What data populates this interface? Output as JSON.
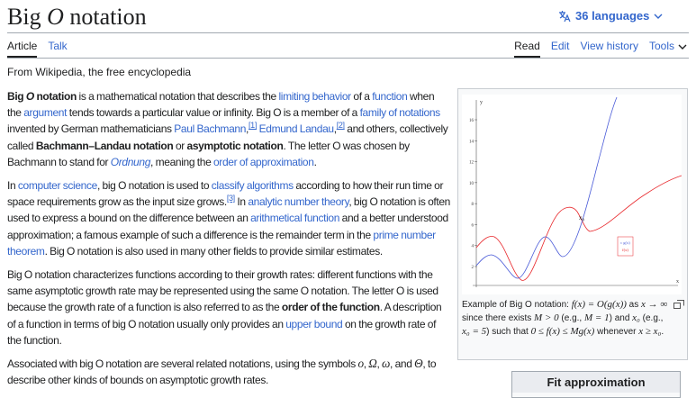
{
  "header": {
    "title": [
      {
        "text": "Big "
      },
      {
        "italic": "O"
      },
      {
        "text": " notation"
      }
    ],
    "languages": "36 languages"
  },
  "tabs_left": [
    "Article",
    "Talk"
  ],
  "tabs_right": [
    "Read",
    "Edit",
    "View history",
    "Tools"
  ],
  "tagline": "From Wikipedia, the free encyclopedia",
  "paragraphs": [
    [
      {
        "bold": "Big "
      },
      {
        "bold_italic": "O"
      },
      {
        "bold": " notation"
      },
      {
        "text": " is a mathematical notation that describes the "
      },
      {
        "link": "limiting behavior"
      },
      {
        "text": " of a "
      },
      {
        "link": "function"
      },
      {
        "text": " when the "
      },
      {
        "link": "argument"
      },
      {
        "text": " tends towards a particular value or infinity. Big O is a member of a "
      },
      {
        "link": "family of notations"
      },
      {
        "text": " invented by German mathematicians "
      },
      {
        "link": "Paul Bachmann"
      },
      {
        "text": ","
      },
      {
        "ref": "[1]"
      },
      {
        "text": " "
      },
      {
        "link": "Edmund Landau"
      },
      {
        "text": ","
      },
      {
        "ref": "[2]"
      },
      {
        "text": " and others, collectively called "
      },
      {
        "bold": "Bachmann–Landau notation"
      },
      {
        "text": " or "
      },
      {
        "bold": "asymptotic notation"
      },
      {
        "text": ". The letter O was chosen by Bachmann to stand for "
      },
      {
        "link_italic": "Ordnung"
      },
      {
        "text": ", meaning the "
      },
      {
        "link": "order of approximation"
      },
      {
        "text": "."
      }
    ],
    [
      {
        "text": "In "
      },
      {
        "link": "computer science"
      },
      {
        "text": ", big O notation is used to "
      },
      {
        "link": "classify algorithms"
      },
      {
        "text": " according to how their run time or space requirements grow as the input size grows."
      },
      {
        "ref": "[3]"
      },
      {
        "text": " In "
      },
      {
        "link": "analytic number theory"
      },
      {
        "text": ", big O notation is often used to express a bound on the difference between an "
      },
      {
        "link": "arithmetical function"
      },
      {
        "text": " and a better understood approximation; a famous example of such a difference is the remainder term in the "
      },
      {
        "link": "prime number theorem"
      },
      {
        "text": ". Big O notation is also used in many other fields to provide similar estimates."
      }
    ],
    [
      {
        "text": "Big O notation characterizes functions according to their growth rates: different functions with the same asymptotic growth rate may be represented using the same O notation. The letter O is used because the growth rate of a function is also referred to as the "
      },
      {
        "bold": "order of the function"
      },
      {
        "text": ". A description of a function in terms of big O notation usually only provides an "
      },
      {
        "link": "upper bound"
      },
      {
        "text": " on the growth rate of the function."
      }
    ],
    [
      {
        "text": "Associated with big O notation are several related notations, using the symbols "
      },
      {
        "math": "o"
      },
      {
        "text": ", "
      },
      {
        "math": "Ω"
      },
      {
        "text": ", "
      },
      {
        "math": "ω"
      },
      {
        "text": ", and "
      },
      {
        "math": "Θ"
      },
      {
        "text": ", to describe other kinds of bounds on asymptotic growth rates."
      }
    ]
  ],
  "figure": {
    "yticks": [
      2,
      4,
      6,
      8,
      10,
      12,
      14,
      16
    ],
    "y_label": "y",
    "x_label": "x",
    "x0_label": "x₀",
    "legend": [
      "c g(x)",
      "f(x)"
    ],
    "caption": [
      {
        "text": "Example of Big O notation: "
      },
      {
        "math": "f(x) = O(g(x))"
      },
      {
        "text": " as "
      },
      {
        "math": "x → ∞"
      },
      {
        "text": " since there exists "
      },
      {
        "math": "M > 0"
      },
      {
        "text": " (e.g., "
      },
      {
        "math": "M = 1"
      },
      {
        "text": ") and "
      },
      {
        "math": "x₀"
      },
      {
        "text": " (e.g., "
      },
      {
        "math": "x₀ = 5"
      },
      {
        "text": ") such that "
      },
      {
        "math": "0 ≤ f(x) ≤ Mg(x)"
      },
      {
        "text": " whenever "
      },
      {
        "math": "x ≥ x₀"
      },
      {
        "text": "."
      }
    ]
  },
  "infobox": {
    "title": "Fit approximation"
  }
}
